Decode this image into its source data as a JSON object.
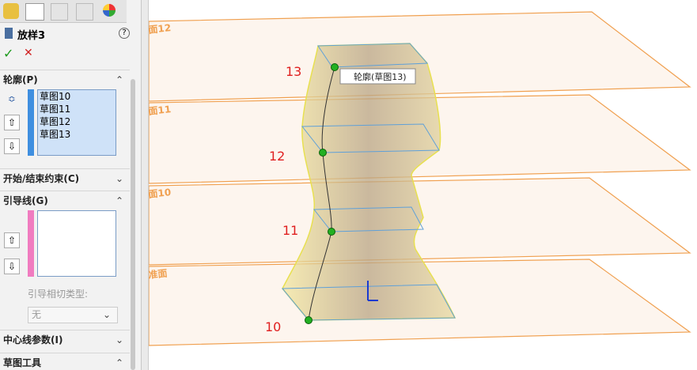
{
  "panel": {
    "title": "放样3",
    "help": "?",
    "ok": "✓",
    "cancel": "✕",
    "profiles": {
      "header": "轮廓(P)",
      "items": [
        "草图10",
        "草图11",
        "草图12",
        "草图13"
      ]
    },
    "start_end": {
      "header": "开始/结束约束(C)"
    },
    "guides": {
      "header": "引导线(G)",
      "tangency_label": "引导相切类型:",
      "tangency_value": "无"
    },
    "centerline": {
      "header": "中心线参数(I)"
    },
    "sketch_tools": {
      "header": "草图工具"
    }
  },
  "viewport": {
    "planes": [
      "面12",
      "面11",
      "面10",
      "准面"
    ],
    "tooltip": "轮廓(草图13)",
    "profile_labels": [
      "13",
      "12",
      "11",
      "10"
    ]
  }
}
